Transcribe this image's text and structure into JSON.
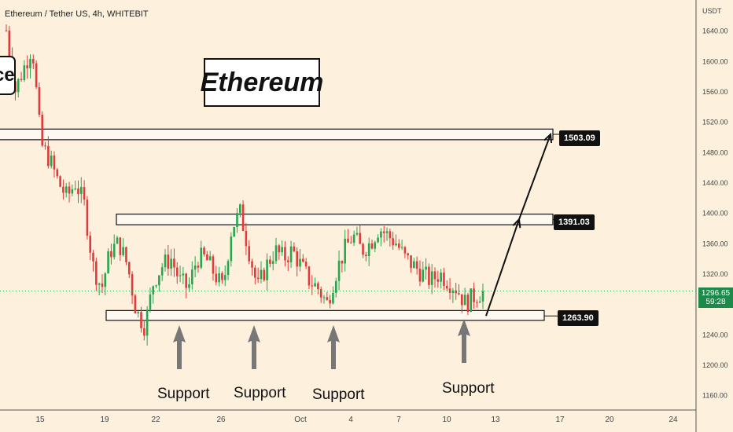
{
  "header": {
    "symbol": "Ethereum / Tether US, 4h, WHITEBIT"
  },
  "headline": "Ethereum",
  "clipped_label": "ce",
  "currency": "USDT",
  "price_tag": {
    "price": "1296.65",
    "countdown": "59:28"
  },
  "levels": {
    "top": "1503.09",
    "middle": "1391.03",
    "bottom": "1263.90"
  },
  "support_labels": [
    "Support",
    "Support",
    "Support",
    "Support"
  ],
  "colors": {
    "up": "#26a64f",
    "down": "#e03a3a",
    "background": "#fdf1dd",
    "price_tag": "#1c8a4a"
  },
  "chart_data": {
    "type": "candlestick",
    "title": "Ethereum / Tether US, 4h, WHITEBIT",
    "ylabel": "USDT",
    "ylim": [
      1140,
      1680
    ],
    "y_ticks": [
      "1160.00",
      "1200.00",
      "1240.00",
      "1280.00",
      "1320.00",
      "1360.00",
      "1400.00",
      "1440.00",
      "1480.00",
      "1520.00",
      "1560.00",
      "1600.00",
      "1640.00"
    ],
    "x_ticks": [
      "15",
      "19",
      "22",
      "26",
      "Oct",
      "4",
      "7",
      "10",
      "13",
      "17",
      "20",
      "24"
    ],
    "horizontal_levels": [
      1503.09,
      1391.03,
      1263.9
    ],
    "projection": [
      1263.9,
      1391.03,
      1503.09
    ],
    "approx_close_path": [
      1640,
      1560,
      1590,
      1620,
      1490,
      1470,
      1440,
      1420,
      1440,
      1410,
      1330,
      1300,
      1350,
      1360,
      1330,
      1270,
      1250,
      1310,
      1330,
      1340,
      1310,
      1300,
      1340,
      1340,
      1320,
      1300,
      1380,
      1400,
      1350,
      1300,
      1330,
      1350,
      1340,
      1350,
      1330,
      1310,
      1300,
      1280,
      1320,
      1350,
      1370,
      1350,
      1360,
      1380,
      1370,
      1360,
      1340,
      1330,
      1320,
      1310,
      1320,
      1310,
      1300,
      1280,
      1290,
      1296.65
    ]
  }
}
